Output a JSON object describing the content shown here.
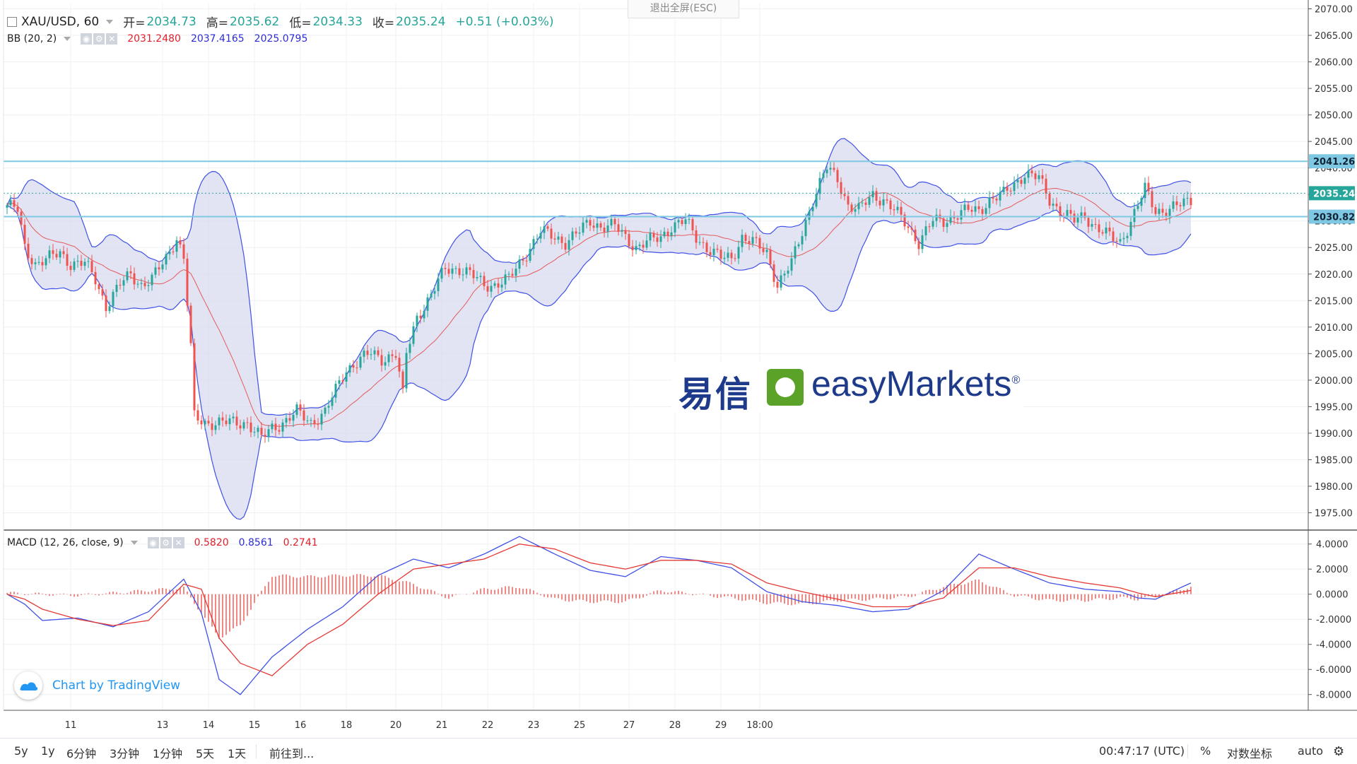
{
  "header": {
    "symbol": "XAU/USD, 60",
    "open_label": "开=",
    "open": "2034.73",
    "high_label": "高=",
    "high": "2035.62",
    "low_label": "低=",
    "low": "2034.33",
    "close_label": "收=",
    "close": "2035.24",
    "change": "+0.51 (+0.03%)"
  },
  "esc_tip": "退出全屏(ESC)",
  "bb_legend": {
    "label": "BB (20, 2)",
    "mid": "2031.2480",
    "upper": "2037.4165",
    "lower": "2025.0795"
  },
  "macd_legend": {
    "label": "MACD (12, 26, close, 9)",
    "hist": "0.5820",
    "macd": "0.8561",
    "signal": "0.2741"
  },
  "watermark": {
    "cn": "易信",
    "en": "easyMarkets",
    "reg": "®"
  },
  "tv_badge": "Chart by TradingView",
  "bottom_bar": {
    "timeframes": [
      "5y",
      "1y",
      "6分钟",
      "3分钟",
      "1分钟",
      "5天",
      "1天"
    ],
    "goto": "前往到...",
    "clock": "00:47:17 (UTC)",
    "percent": "%",
    "log": "对数坐标",
    "auto": "auto"
  },
  "colors": {
    "up": "#26a69a",
    "down": "#ef5350",
    "band_fill": "#d6d8f0",
    "band_line": "#3f51e6",
    "basis": "#e53935",
    "hline": "#7ec8e3"
  },
  "chart_data": [
    {
      "type": "candlestick",
      "ylim": [
        1972,
        2071
      ],
      "y_ticks": [
        "2070.00",
        "2065.00",
        "2060.00",
        "2055.00",
        "2050.00",
        "2045.00",
        "2040.00",
        "2035.00",
        "2030.00",
        "2025.00",
        "2020.00",
        "2015.00",
        "2010.00",
        "2005.00",
        "2000.00",
        "1995.00",
        "1990.00",
        "1985.00",
        "1980.00",
        "1975.00"
      ],
      "x_ticks": [
        "11",
        "13",
        "14",
        "15",
        "16",
        "18",
        "20",
        "21",
        "22",
        "23",
        "25",
        "27",
        "28",
        "29",
        "18:00"
      ],
      "horizontal_lines": [
        2041.26,
        2030.82
      ],
      "last_price": 2035.24,
      "price_labels": [
        "2041.26",
        "2035.24",
        "2030.82"
      ],
      "path": [
        [
          0,
          2033
        ],
        [
          3,
          2032
        ],
        [
          5,
          2025
        ],
        [
          8,
          2022
        ],
        [
          12,
          2023
        ],
        [
          15,
          2024
        ],
        [
          18,
          2022
        ],
        [
          22,
          2022
        ],
        [
          25,
          2019
        ],
        [
          28,
          2014
        ],
        [
          32,
          2018
        ],
        [
          35,
          2020
        ],
        [
          38,
          2018
        ],
        [
          41,
          2019
        ],
        [
          45,
          2023
        ],
        [
          48,
          2027
        ],
        [
          50,
          2023
        ],
        [
          52,
          2006
        ],
        [
          53,
          1993
        ],
        [
          56,
          1992
        ],
        [
          60,
          1992
        ],
        [
          64,
          1992
        ],
        [
          68,
          1992
        ],
        [
          72,
          1989
        ],
        [
          75,
          1991
        ],
        [
          78,
          1992
        ],
        [
          82,
          1994
        ],
        [
          86,
          1992
        ],
        [
          90,
          1994
        ],
        [
          93,
          1998
        ],
        [
          96,
          2002
        ],
        [
          100,
          2004
        ],
        [
          103,
          2005
        ],
        [
          106,
          2004
        ],
        [
          110,
          2005
        ],
        [
          112,
          1997
        ],
        [
          113,
          2005
        ],
        [
          116,
          2012
        ],
        [
          120,
          2016
        ],
        [
          124,
          2021
        ],
        [
          128,
          2021
        ],
        [
          131,
          2020
        ],
        [
          135,
          2018
        ],
        [
          138,
          2018
        ],
        [
          142,
          2019
        ],
        [
          145,
          2022
        ],
        [
          148,
          2025
        ],
        [
          151,
          2028
        ],
        [
          155,
          2027
        ],
        [
          158,
          2026
        ],
        [
          162,
          2028
        ],
        [
          165,
          2030
        ],
        [
          168,
          2029
        ],
        [
          172,
          2029
        ],
        [
          175,
          2027
        ],
        [
          178,
          2025
        ],
        [
          181,
          2026
        ],
        [
          185,
          2027
        ],
        [
          188,
          2029
        ],
        [
          192,
          2030
        ],
        [
          195,
          2027
        ],
        [
          198,
          2025
        ],
        [
          202,
          2023
        ],
        [
          205,
          2023
        ],
        [
          208,
          2027
        ],
        [
          211,
          2026
        ],
        [
          215,
          2024
        ],
        [
          218,
          2018
        ],
        [
          222,
          2022
        ],
        [
          225,
          2028
        ],
        [
          228,
          2034
        ],
        [
          232,
          2040
        ],
        [
          235,
          2038
        ],
        [
          238,
          2033
        ],
        [
          241,
          2032
        ],
        [
          245,
          2035
        ],
        [
          248,
          2034
        ],
        [
          251,
          2032
        ],
        [
          255,
          2029
        ],
        [
          258,
          2026
        ],
        [
          262,
          2030
        ],
        [
          265,
          2030
        ],
        [
          268,
          2031
        ],
        [
          272,
          2032
        ],
        [
          275,
          2032
        ],
        [
          278,
          2034
        ],
        [
          282,
          2035
        ],
        [
          285,
          2037
        ],
        [
          288,
          2039
        ],
        [
          292,
          2038
        ],
        [
          295,
          2034
        ],
        [
          298,
          2032
        ],
        [
          302,
          2030
        ],
        [
          305,
          2031
        ],
        [
          308,
          2029
        ],
        [
          312,
          2027
        ],
        [
          315,
          2026
        ],
        [
          318,
          2030
        ],
        [
          322,
          2036
        ],
        [
          325,
          2032
        ],
        [
          328,
          2032
        ],
        [
          332,
          2033
        ],
        [
          335,
          2034
        ]
      ]
    },
    {
      "type": "macd",
      "ylim": [
        -9.2,
        5
      ],
      "y_ticks": [
        "4.0000",
        "2.0000",
        "0.0000",
        "-2.0000",
        "-4.0000",
        "-6.0000",
        "-8.0000"
      ],
      "zero_line": 0,
      "macd_path": [
        [
          0,
          0
        ],
        [
          5,
          -0.8
        ],
        [
          10,
          -2.1
        ],
        [
          20,
          -1.9
        ],
        [
          30,
          -2.6
        ],
        [
          40,
          -1.4
        ],
        [
          50,
          1.2
        ],
        [
          55,
          -1.5
        ],
        [
          60,
          -6.8
        ],
        [
          66,
          -8
        ],
        [
          75,
          -5
        ],
        [
          85,
          -2.8
        ],
        [
          95,
          -1
        ],
        [
          105,
          1.5
        ],
        [
          115,
          2.8
        ],
        [
          125,
          2.1
        ],
        [
          135,
          3.2
        ],
        [
          145,
          4.6
        ],
        [
          155,
          3.2
        ],
        [
          165,
          1.9
        ],
        [
          175,
          1.4
        ],
        [
          185,
          3
        ],
        [
          195,
          2.7
        ],
        [
          205,
          2.1
        ],
        [
          215,
          0.2
        ],
        [
          225,
          -0.6
        ],
        [
          235,
          -0.9
        ],
        [
          245,
          -1.4
        ],
        [
          255,
          -1.2
        ],
        [
          265,
          0.3
        ],
        [
          275,
          3.2
        ],
        [
          285,
          2
        ],
        [
          295,
          0.9
        ],
        [
          305,
          0.4
        ],
        [
          315,
          0.2
        ],
        [
          320,
          -0.3
        ],
        [
          325,
          -0.4
        ],
        [
          335,
          0.9
        ]
      ],
      "signal_path": [
        [
          0,
          0
        ],
        [
          5,
          -0.4
        ],
        [
          10,
          -1.2
        ],
        [
          20,
          -2.0
        ],
        [
          30,
          -2.5
        ],
        [
          40,
          -2.1
        ],
        [
          50,
          0.8
        ],
        [
          55,
          0.4
        ],
        [
          60,
          -3.5
        ],
        [
          66,
          -5.5
        ],
        [
          75,
          -6.5
        ],
        [
          85,
          -4
        ],
        [
          95,
          -2.4
        ],
        [
          105,
          0
        ],
        [
          115,
          2
        ],
        [
          125,
          2.4
        ],
        [
          135,
          2.8
        ],
        [
          145,
          4
        ],
        [
          155,
          3.6
        ],
        [
          165,
          2.5
        ],
        [
          175,
          2
        ],
        [
          185,
          2.7
        ],
        [
          195,
          2.7
        ],
        [
          205,
          2.4
        ],
        [
          215,
          0.9
        ],
        [
          225,
          0.2
        ],
        [
          235,
          -0.4
        ],
        [
          245,
          -1
        ],
        [
          255,
          -1
        ],
        [
          265,
          -0.3
        ],
        [
          275,
          2.1
        ],
        [
          285,
          2.1
        ],
        [
          295,
          1.4
        ],
        [
          305,
          0.9
        ],
        [
          315,
          0.5
        ],
        [
          320,
          0.1
        ],
        [
          325,
          -0.2
        ],
        [
          335,
          0.3
        ]
      ],
      "hist_path": [
        [
          0,
          0.1
        ],
        [
          20,
          -0.1
        ],
        [
          35,
          0.2
        ],
        [
          50,
          0.5
        ],
        [
          55,
          -1.5
        ],
        [
          60,
          -3.5
        ],
        [
          66,
          -2.5
        ],
        [
          75,
          1.5
        ],
        [
          85,
          1.4
        ],
        [
          95,
          1.5
        ],
        [
          105,
          1.5
        ],
        [
          115,
          0.8
        ],
        [
          125,
          -0.3
        ],
        [
          135,
          0.4
        ],
        [
          145,
          0.6
        ],
        [
          155,
          -0.4
        ],
        [
          165,
          -0.6
        ],
        [
          175,
          -0.6
        ],
        [
          185,
          0.3
        ],
        [
          195,
          0
        ],
        [
          205,
          -0.3
        ],
        [
          215,
          -0.7
        ],
        [
          225,
          -0.8
        ],
        [
          235,
          -0.5
        ],
        [
          245,
          -0.4
        ],
        [
          255,
          -0.2
        ],
        [
          265,
          0.6
        ],
        [
          275,
          1.1
        ],
        [
          285,
          -0.1
        ],
        [
          295,
          -0.5
        ],
        [
          305,
          -0.5
        ],
        [
          315,
          -0.3
        ],
        [
          320,
          -0.4
        ],
        [
          325,
          -0.2
        ],
        [
          335,
          0.6
        ]
      ]
    }
  ]
}
